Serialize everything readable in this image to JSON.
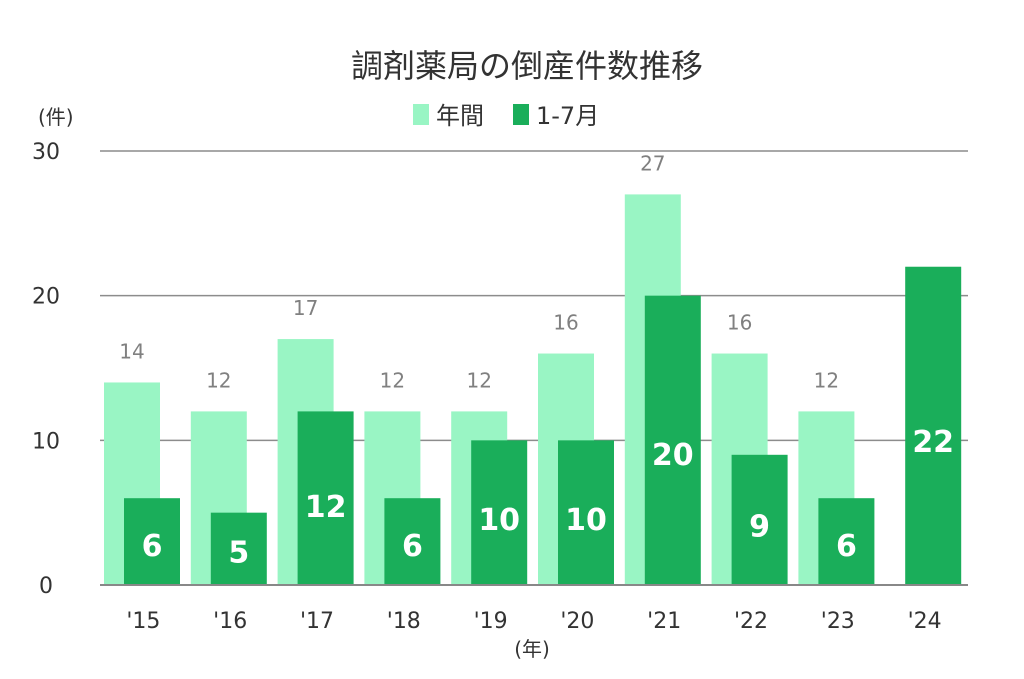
{
  "chart_data": {
    "type": "bar",
    "title": "調剤薬局の倒産件数推移",
    "ylabel": "(件)",
    "xlabel": "(年)",
    "ylim": [
      0,
      30
    ],
    "yticks": [
      0,
      10,
      20,
      30
    ],
    "grid": true,
    "legend_position": "top",
    "categories": [
      "'15",
      "'16",
      "'17",
      "'18",
      "'19",
      "'20",
      "'21",
      "'22",
      "'23",
      "'24"
    ],
    "series": [
      {
        "name": "年間",
        "color": "#99f5c4",
        "values": [
          14,
          12,
          17,
          12,
          12,
          16,
          27,
          16,
          12,
          null
        ]
      },
      {
        "name": "1-7月",
        "color": "#1aae5a",
        "values": [
          6,
          5,
          12,
          6,
          10,
          10,
          20,
          9,
          6,
          22
        ]
      }
    ]
  }
}
